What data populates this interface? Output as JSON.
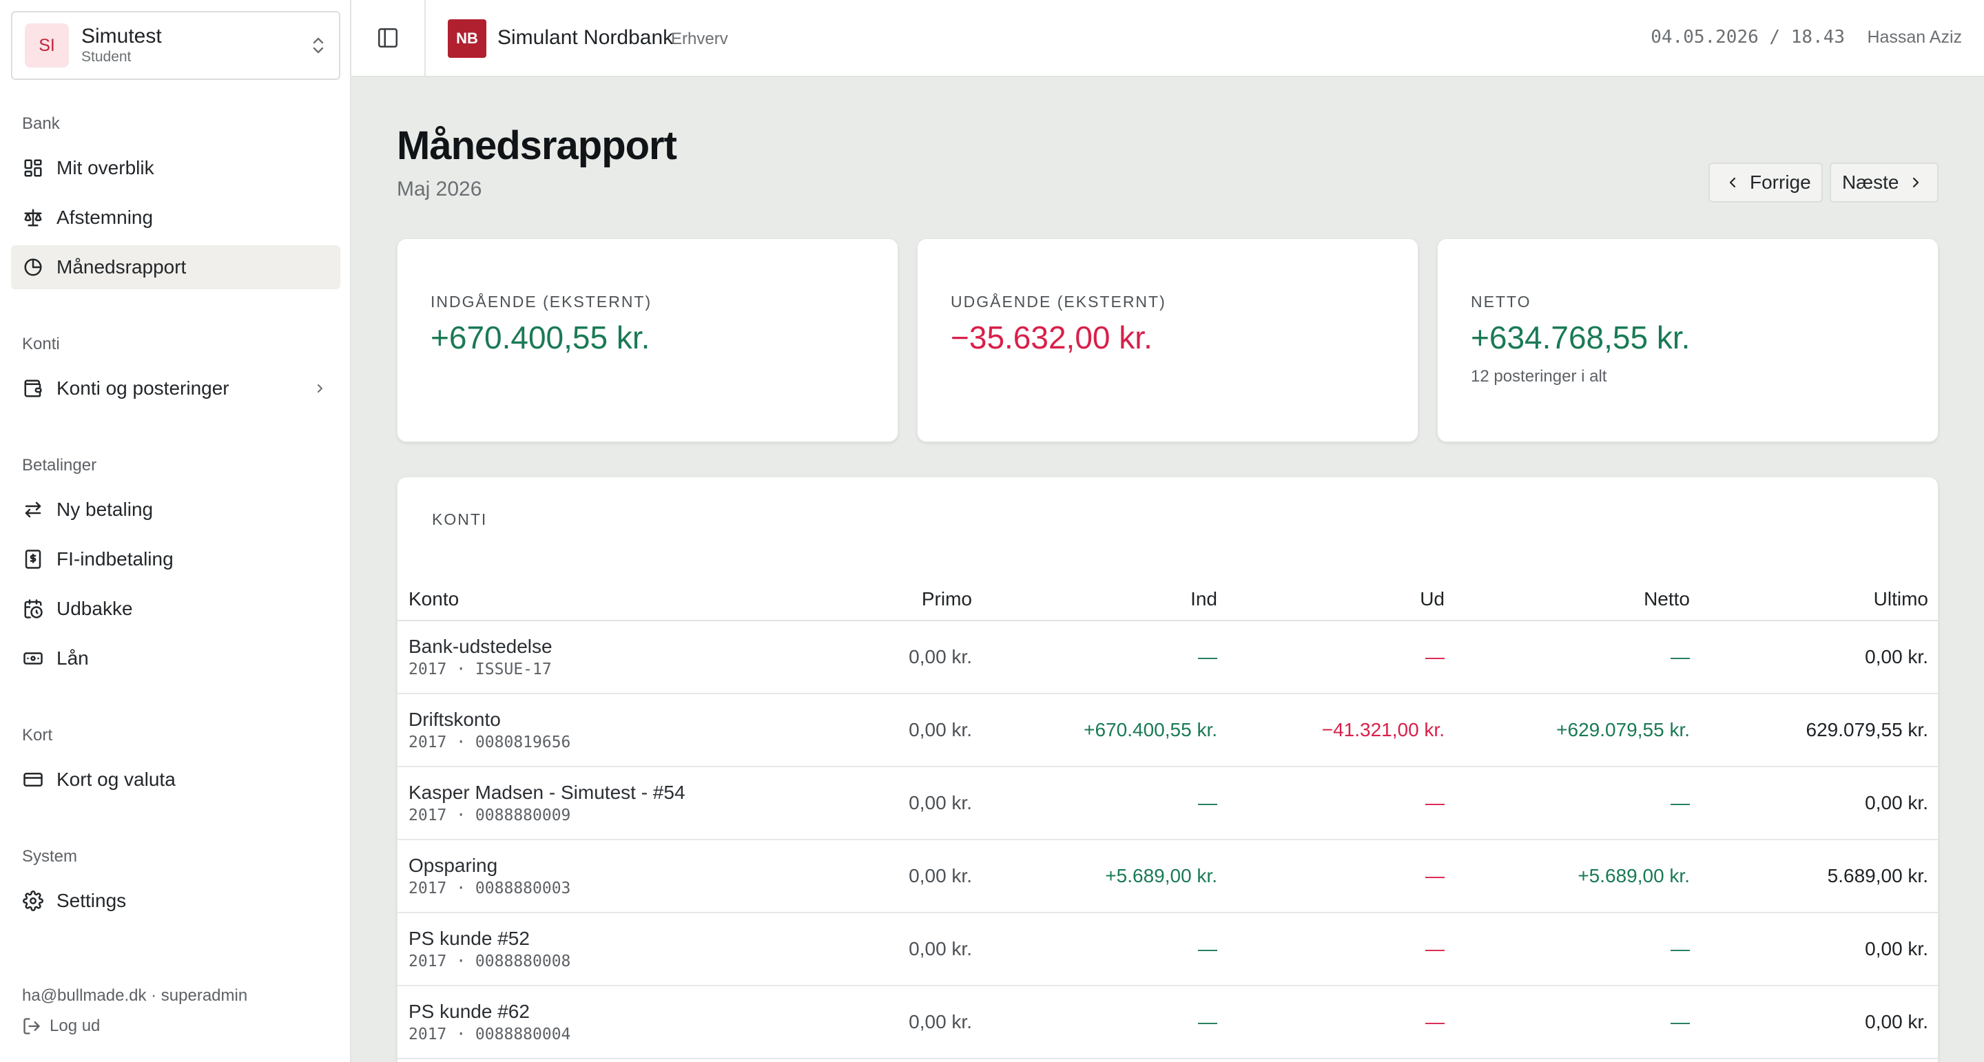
{
  "org": {
    "initials": "SI",
    "name": "Simutest",
    "role": "Student"
  },
  "nav": {
    "sections": [
      {
        "title": "Bank",
        "items": [
          {
            "label": "Mit overblik",
            "icon": "dashboard-icon"
          },
          {
            "label": "Afstemning",
            "icon": "scale-icon"
          },
          {
            "label": "Månedsrapport",
            "icon": "pie-chart-icon",
            "active": true
          }
        ]
      },
      {
        "title": "Konti",
        "items": [
          {
            "label": "Konti og posteringer",
            "icon": "wallet-icon"
          }
        ]
      },
      {
        "title": "Betalinger",
        "items": [
          {
            "label": "Ny betaling",
            "icon": "transfer-icon"
          },
          {
            "label": "FI-indbetaling",
            "icon": "receipt-icon"
          },
          {
            "label": "Udbakke",
            "icon": "calendar-clock-icon"
          },
          {
            "label": "Lån",
            "icon": "banknote-icon"
          }
        ]
      },
      {
        "title": "Kort",
        "items": [
          {
            "label": "Kort og valuta",
            "icon": "credit-card-icon"
          }
        ]
      },
      {
        "title": "System",
        "items": [
          {
            "label": "Settings",
            "icon": "gear-icon"
          }
        ]
      }
    ]
  },
  "footer": {
    "email": "ha@bullmade.dk · superadmin",
    "logout": "Log ud"
  },
  "topbar": {
    "bank_initials": "NB",
    "bank_name": "Simulant Nordbank",
    "bank_sub": "Erhverv",
    "datetime": "04.05.2026 / 18.43",
    "user": "Hassan Aziz"
  },
  "page": {
    "title": "Månedsrapport",
    "subtitle": "Maj 2026",
    "prev": "Forrige",
    "next": "Næste"
  },
  "summary": {
    "incoming": {
      "label": "INDGÅENDE (EKSTERNT)",
      "value": "+670.400,55 kr."
    },
    "outgoing": {
      "label": "UDGÅENDE (EKSTERNT)",
      "value": "−35.632,00 kr."
    },
    "net": {
      "label": "NETTO",
      "value": "+634.768,55 kr.",
      "note": "12 posteringer i alt"
    }
  },
  "colors": {
    "positive": "#1a7a55",
    "negative": "#d8204a",
    "brand": "#b1202f"
  },
  "accounts": {
    "title": "KONTI",
    "columns": [
      "Konto",
      "Primo",
      "Ind",
      "Ud",
      "Netto",
      "Ultimo"
    ],
    "rows": [
      {
        "name": "Bank-udstedelse",
        "sub": "2017 · ISSUE-17",
        "primo": "0,00 kr.",
        "ind": "—",
        "ud": "—",
        "netto": "—",
        "ultimo": "0,00 kr."
      },
      {
        "name": "Driftskonto",
        "sub": "2017 · 0080819656",
        "primo": "0,00 kr.",
        "ind": "+670.400,55 kr.",
        "ud": "−41.321,00 kr.",
        "netto": "+629.079,55 kr.",
        "ultimo": "629.079,55 kr."
      },
      {
        "name": "Kasper Madsen - Simutest - #54",
        "sub": "2017 · 0088880009",
        "primo": "0,00 kr.",
        "ind": "—",
        "ud": "—",
        "netto": "—",
        "ultimo": "0,00 kr."
      },
      {
        "name": "Opsparing",
        "sub": "2017 · 0088880003",
        "primo": "0,00 kr.",
        "ind": "+5.689,00 kr.",
        "ud": "—",
        "netto": "+5.689,00 kr.",
        "ultimo": "5.689,00 kr."
      },
      {
        "name": "PS kunde #52",
        "sub": "2017 · 0088880008",
        "primo": "0,00 kr.",
        "ind": "—",
        "ud": "—",
        "netto": "—",
        "ultimo": "0,00 kr."
      },
      {
        "name": "PS kunde #62",
        "sub": "2017 · 0088880004",
        "primo": "0,00 kr.",
        "ind": "—",
        "ud": "—",
        "netto": "—",
        "ultimo": "0,00 kr."
      }
    ]
  }
}
